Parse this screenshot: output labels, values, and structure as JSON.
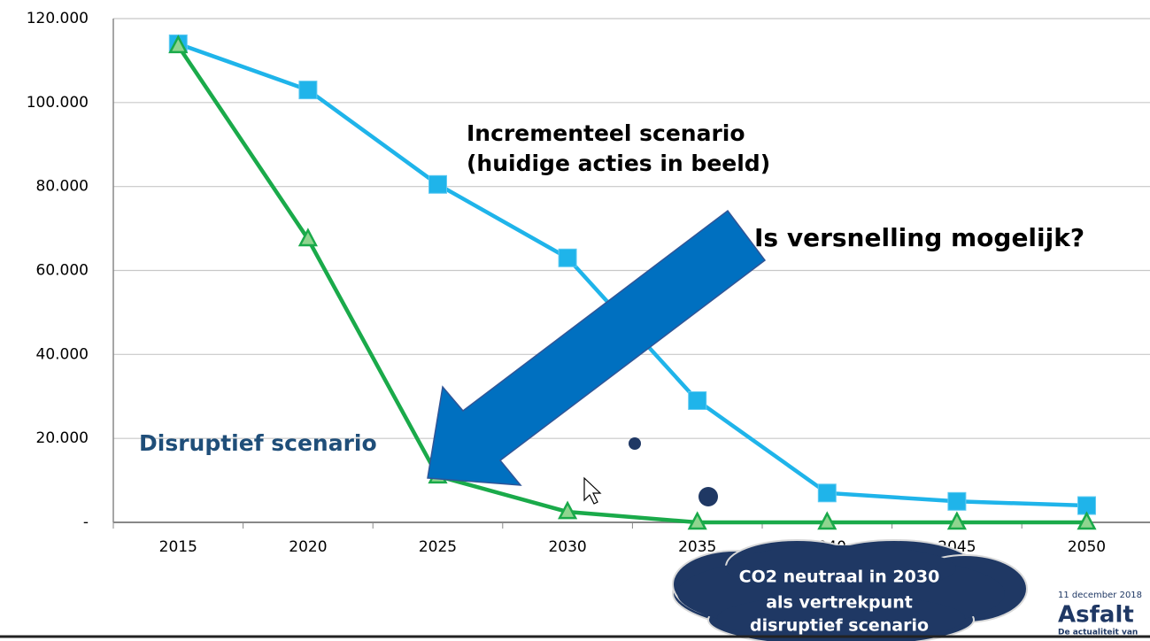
{
  "chart_data": {
    "type": "line",
    "categories": [
      "2015",
      "2020",
      "2025",
      "2030",
      "2035",
      "2040",
      "2045",
      "2050"
    ],
    "series": [
      {
        "name": "Incrementeel scenario",
        "color": "#1fb4ea",
        "values": [
          114000,
          103000,
          80500,
          63000,
          29000,
          7000,
          5000,
          4000
        ]
      },
      {
        "name": "Disruptief scenario",
        "color": "#1aaa4a",
        "values": [
          113500,
          67500,
          11000,
          2500,
          0,
          0,
          0,
          0
        ]
      }
    ],
    "ylim": [
      0,
      120000
    ],
    "yticks": [
      {
        "value": 0,
        "label": "-"
      },
      {
        "value": 20000,
        "label": "20.000"
      },
      {
        "value": 40000,
        "label": "40.000"
      },
      {
        "value": 60000,
        "label": "60.000"
      },
      {
        "value": 80000,
        "label": "80.000"
      },
      {
        "value": 100000,
        "label": "100.000"
      },
      {
        "value": 120000,
        "label": "120.000"
      }
    ],
    "grid": true,
    "annotations": [
      "Incrementeel scenario",
      "(huidige acties in beeld)",
      "Is versnelling mogelijk?",
      "Disruptief scenario"
    ],
    "cloud_text": [
      "CO2 neutraal in 2030",
      "als vertrekpunt",
      "disruptief scenario"
    ],
    "footer": {
      "date": "11 december 2018",
      "brand": "Asfalt",
      "tagline": "De actualiteit van"
    }
  }
}
